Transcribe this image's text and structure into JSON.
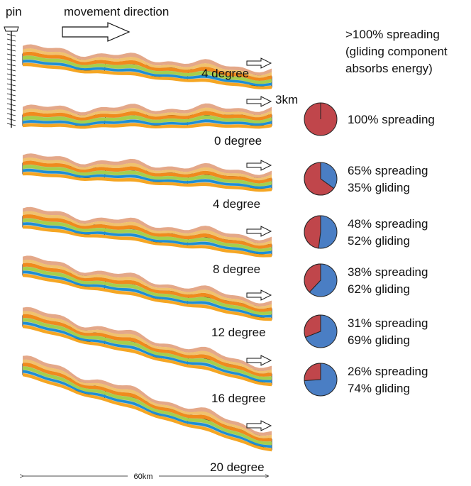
{
  "header": {
    "pin_label": "pin",
    "direction_label": "movement direction",
    "top_text": [
      ">100% spreading",
      "(gliding component",
      "absorbs energy)"
    ],
    "thickness_label": "3km"
  },
  "scale_label": "60km",
  "colors": {
    "spreading": "#c0464b",
    "gliding": "#4a7ec4",
    "base": "#c8c8c8",
    "layers": [
      "#e4a889",
      "#f0c26f",
      "#f08a1d",
      "#a5cf4c",
      "#1d8fd4",
      "#f5a623",
      "#e5751a"
    ]
  },
  "models": [
    {
      "angle": "4 degree",
      "lines": [],
      "spreading_pct": null
    },
    {
      "angle": "0 degree",
      "lines": [
        "100% spreading"
      ],
      "spreading_pct": 100
    },
    {
      "angle": "4 degree",
      "lines": [
        "65% spreading",
        "35% gliding"
      ],
      "spreading_pct": 65
    },
    {
      "angle": "8 degree",
      "lines": [
        "48% spreading",
        "52% gliding"
      ],
      "spreading_pct": 48
    },
    {
      "angle": "12 degree",
      "lines": [
        "38% spreading",
        "62% gliding"
      ],
      "spreading_pct": 38
    },
    {
      "angle": "16 degree",
      "lines": [
        "31% spreading",
        "69% gliding"
      ],
      "spreading_pct": 31
    },
    {
      "angle": "20 degree",
      "lines": [
        "26% spreading",
        "74% gliding"
      ],
      "spreading_pct": 26
    }
  ]
}
